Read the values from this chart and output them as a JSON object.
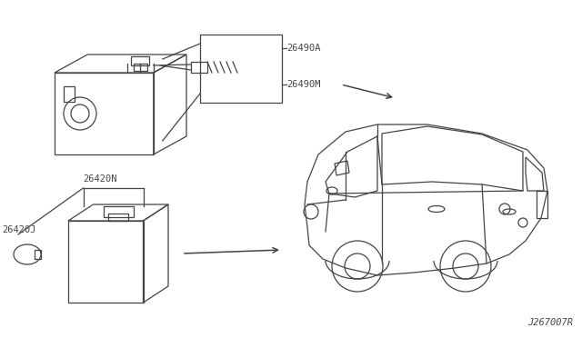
{
  "bg_color": "#ffffff",
  "diagram_id": "J267007R",
  "gray": "#444444",
  "label_26490A": "26490A",
  "label_26490M": "26490M",
  "label_26420N": "26420N",
  "label_26420J": "26420J"
}
